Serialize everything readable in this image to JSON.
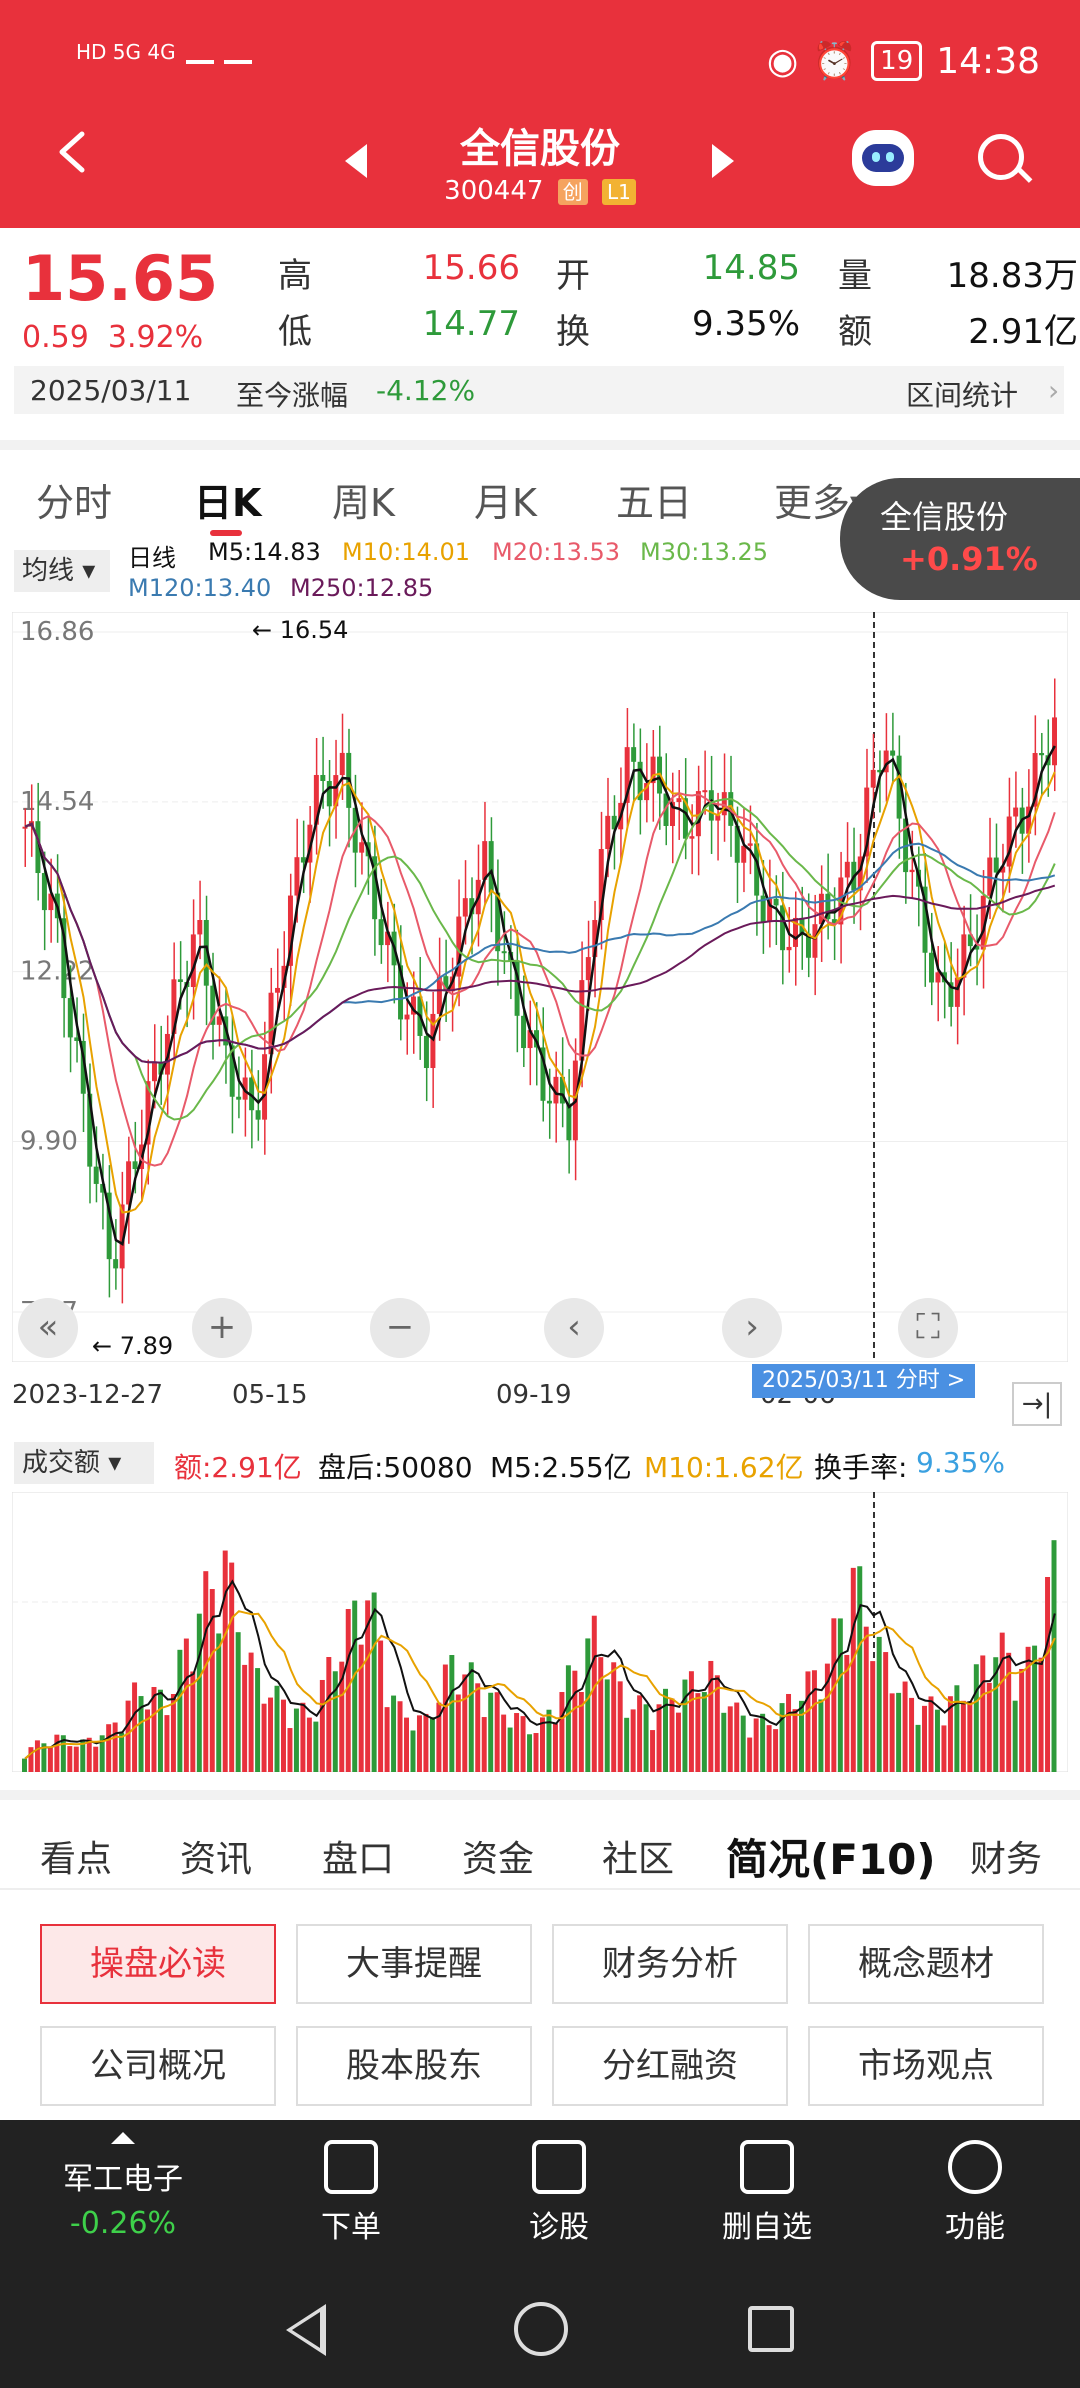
{
  "status_bar": {
    "left_text": "HD 5G 4G",
    "time": "14:38",
    "battery": "19"
  },
  "header": {
    "stock_name": "全信股份",
    "stock_code": "300447",
    "tag1": "创",
    "tag2": "L1"
  },
  "quote": {
    "price": "15.65",
    "change": "0.59",
    "change_pct": "3.92%",
    "high_label": "高",
    "high": "15.66",
    "open_label": "开",
    "open": "14.85",
    "vol_label": "量",
    "vol": "18.83万",
    "low_label": "低",
    "low": "14.77",
    "turnover_label": "换",
    "turnover": "9.35%",
    "amount_label": "额",
    "amount": "2.91亿",
    "range_date": "2025/03/11",
    "range_label": "至今涨幅",
    "range_value": "-4.12%",
    "range_stats": "区间统计"
  },
  "tabs": [
    "分时",
    "日K",
    "周K",
    "月K",
    "五日",
    "更多▾"
  ],
  "float_badge": {
    "name": "全信股份",
    "pct": "+0.91%"
  },
  "ma": {
    "btn": "均线",
    "line_label": "日线",
    "m5": "M5:14.83",
    "m10": "M10:14.01",
    "m20": "M20:13.53",
    "m30": "M30:13.25",
    "m120": "M120:13.40",
    "m250": "M250:12.85"
  },
  "colors": {
    "m5": "#111111",
    "m10": "#e8a200",
    "m20": "#e85a6a",
    "m30": "#6ab84a",
    "m120": "#3a7ab0",
    "m250": "#6a1a5a",
    "up": "#e8313c",
    "down": "#2e9a3a"
  },
  "chart_data": {
    "type": "candlestick",
    "y_ticks": [
      "16.86",
      "14.54",
      "12.22",
      "9.90",
      "7.57"
    ],
    "ylim": [
      7.57,
      16.86
    ],
    "max_label": "16.54",
    "min_label": "7.89",
    "x_ticks": [
      "2023-12-27",
      "05-15",
      "09-19",
      "02-06"
    ],
    "close_series": [
      14.2,
      13.0,
      10.5,
      8.2,
      10.0,
      11.5,
      12.8,
      11.0,
      10.2,
      12.5,
      14.5,
      15.0,
      13.5,
      12.0,
      11.2,
      12.5,
      13.8,
      12.0,
      10.8,
      10.2,
      13.5,
      15.0,
      14.8,
      14.2,
      14.6,
      14.0,
      13.0,
      12.6,
      13.0,
      13.6,
      15.5,
      13.5,
      11.8,
      12.5,
      13.8,
      14.5,
      15.65
    ]
  },
  "crosshair_date": "2025/03/11 分时 >",
  "ctrl": {
    "prev": "«",
    "plus": "+",
    "minus": "−",
    "left": "‹",
    "right": "›",
    "expand": "⛶"
  },
  "volume": {
    "label": "成交额",
    "amount": "额:2.91亿",
    "after": "盘后:50080",
    "m5": "M5:2.55亿",
    "m10": "M10:1.62亿",
    "turnover_label": "换手率:",
    "turnover": "9.35%",
    "values": [
      0.3,
      0.5,
      0.4,
      0.6,
      1.2,
      1.0,
      2.2,
      3.0,
      1.4,
      1.0,
      0.8,
      1.8,
      2.6,
      0.9,
      0.7,
      1.6,
      1.2,
      0.8,
      0.6,
      1.3,
      2.0,
      1.0,
      0.9,
      1.2,
      1.4,
      0.8,
      0.7,
      1.1,
      1.5,
      2.8,
      1.6,
      1.0,
      0.9,
      1.2,
      1.8,
      1.4,
      2.91
    ]
  },
  "info_tabs": [
    "看点",
    "资讯",
    "盘口",
    "资金",
    "社区",
    "简况(F10)",
    "财务"
  ],
  "sub_buttons": [
    "操盘必读",
    "大事提醒",
    "财务分析",
    "概念题材",
    "公司概况",
    "股本股东",
    "分红融资",
    "市场观点"
  ],
  "bottom": {
    "sector": "军工电子",
    "sector_pct": "-0.26%",
    "order": "下单",
    "diagnose": "诊股",
    "remove": "删自选",
    "func": "功能"
  }
}
